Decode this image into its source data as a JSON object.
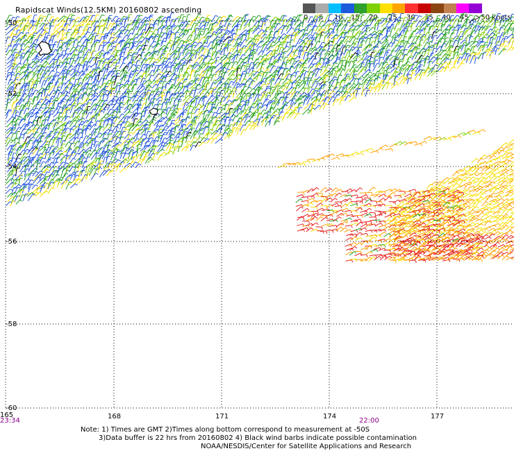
{
  "title": "Rapidscat Winds(12.5KM) 20160802 ascending",
  "legend": {
    "colors": [
      "#555555",
      "#aaaaaa",
      "#00bfff",
      "#1e5adc",
      "#2da02d",
      "#7fd000",
      "#ffe000",
      "#ffa500",
      "#ff3030",
      "#c80000",
      "#8b4513",
      "#c08050",
      "#ff00ff",
      "#9400d3"
    ],
    "labels": [
      "0",
      "5",
      "10",
      "15",
      "20",
      "25",
      "30",
      "35",
      "40",
      "45",
      ">50 knots"
    ]
  },
  "map": {
    "lat_labels": [
      "-50",
      "-52",
      "-54",
      "-56",
      "-58",
      "-60"
    ],
    "lon_labels": [
      "165",
      "168",
      "171",
      "174",
      "177"
    ],
    "time_labels": [
      "23:34",
      "22:00"
    ]
  },
  "notes": {
    "line1": "Note: 1) Times are GMT 2)Times along bottom correspond to measurement at -50S",
    "line2": "3)Data buffer is 22 hrs from 20160802 4) Black wind barbs indicate possible contamination",
    "line3": "NOAA/NESDIS/Center for Satellite Applications and Research"
  },
  "barb_colors": {
    "blue": "#1e50dc",
    "green": "#22a022",
    "lightgreen": "#80d000",
    "yellow": "#f5e000",
    "orange": "#ffa000",
    "red": "#e61e1e",
    "black": "#000000"
  }
}
